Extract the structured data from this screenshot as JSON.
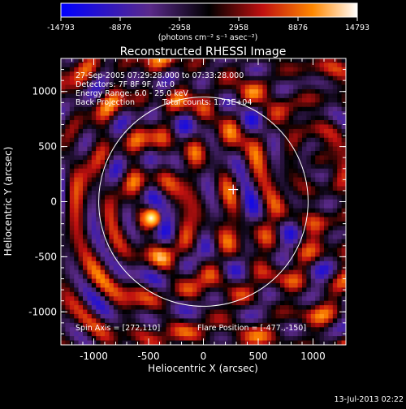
{
  "colorbar": {
    "ticks": [
      "-14793",
      "-8876",
      "-2958",
      "2958",
      "8876",
      "14793"
    ],
    "unit_label": "(photons cm⁻² s⁻¹ asec⁻²)"
  },
  "header": {
    "title": "Reconstructed RHESSI Image",
    "time_range": "27-Sep-2005 07:29:28.000 to 07:33:28.000",
    "detectors": "Detectors: 7F 8F 9F, Att 0",
    "energy_range": "Energy Range: 6.0 - 25.0 keV",
    "method": "Back Projection",
    "total_counts": "Total counts: 1.73E+04"
  },
  "footer": {
    "spin_axis": "Spin Axis = [272,110]",
    "flare_position": "Flare Position = [-477.,-150]",
    "timestamp": "13-Jul-2013 02:22"
  },
  "chart_data": {
    "type": "heatmap",
    "title": "Reconstructed RHESSI Image",
    "xlabel": "Heliocentric X (arcsec)",
    "ylabel": "Heliocentric Y (arcsec)",
    "xlim": [
      -1300,
      1300
    ],
    "ylim": [
      -1300,
      1300
    ],
    "xticks": [
      "-1000",
      "-500",
      "0",
      "500",
      "1000"
    ],
    "yticks": [
      "1000",
      "500",
      "0",
      "-500",
      "-1000"
    ],
    "color_range": [
      -14793,
      14793
    ],
    "colormap": [
      "#0000ff",
      "#5a2a8a",
      "#000000",
      "#c01010",
      "#ff8800",
      "#ffffff"
    ],
    "peak": {
      "x": -477,
      "y": -150
    },
    "spin_axis": {
      "x": 272,
      "y": 110
    },
    "solar_limb_radius": 955,
    "grid": false
  }
}
